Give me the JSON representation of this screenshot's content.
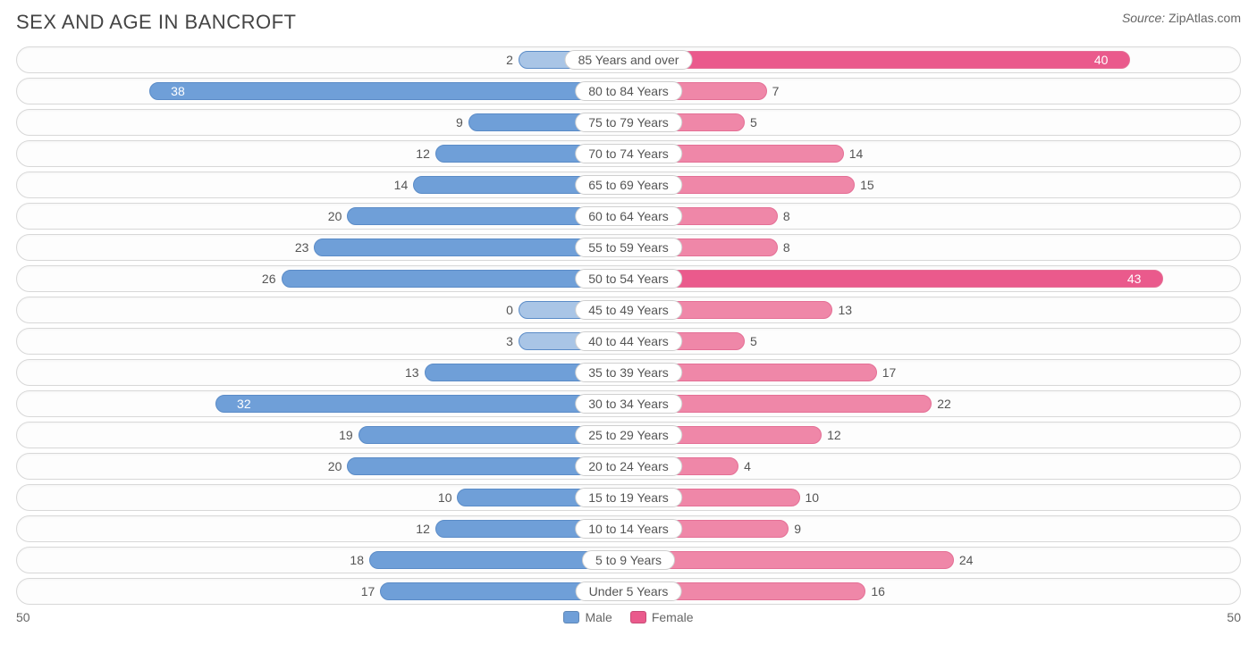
{
  "title": "SEX AND AGE IN BANCROFT",
  "source_label": "Source:",
  "source_value": "ZipAtlas.com",
  "axis_max": 50,
  "axis_left_label": "50",
  "axis_right_label": "50",
  "legend": {
    "male": "Male",
    "female": "Female"
  },
  "colors": {
    "male_bar": "#6f9fd8",
    "male_bar_border": "#5a8bc7",
    "female_bar": "#ef87a8",
    "female_bar_border": "#e46f95",
    "female_highlight": "#ea5a8c",
    "male_light": "#a9c5e6",
    "row_border": "#d8d8d8",
    "background": "#ffffff",
    "text": "#555555"
  },
  "center_label_half_pct": 5,
  "rows": [
    {
      "label": "85 Years and over",
      "male": 2,
      "female": 40,
      "male_light": true,
      "female_highlight": true,
      "female_inside": true
    },
    {
      "label": "80 to 84 Years",
      "male": 38,
      "female": 7,
      "male_inside": true
    },
    {
      "label": "75 to 79 Years",
      "male": 9,
      "female": 5
    },
    {
      "label": "70 to 74 Years",
      "male": 12,
      "female": 14
    },
    {
      "label": "65 to 69 Years",
      "male": 14,
      "female": 15
    },
    {
      "label": "60 to 64 Years",
      "male": 20,
      "female": 8
    },
    {
      "label": "55 to 59 Years",
      "male": 23,
      "female": 8
    },
    {
      "label": "50 to 54 Years",
      "male": 26,
      "female": 43,
      "female_highlight": true,
      "female_inside": true
    },
    {
      "label": "45 to 49 Years",
      "male": 0,
      "female": 13,
      "male_light": true
    },
    {
      "label": "40 to 44 Years",
      "male": 3,
      "female": 5,
      "male_light": true
    },
    {
      "label": "35 to 39 Years",
      "male": 13,
      "female": 17
    },
    {
      "label": "30 to 34 Years",
      "male": 32,
      "female": 22,
      "male_inside": true
    },
    {
      "label": "25 to 29 Years",
      "male": 19,
      "female": 12
    },
    {
      "label": "20 to 24 Years",
      "male": 20,
      "female": 4
    },
    {
      "label": "15 to 19 Years",
      "male": 10,
      "female": 10
    },
    {
      "label": "10 to 14 Years",
      "male": 12,
      "female": 9
    },
    {
      "label": "5 to 9 Years",
      "male": 18,
      "female": 24
    },
    {
      "label": "Under 5 Years",
      "male": 17,
      "female": 16
    }
  ]
}
